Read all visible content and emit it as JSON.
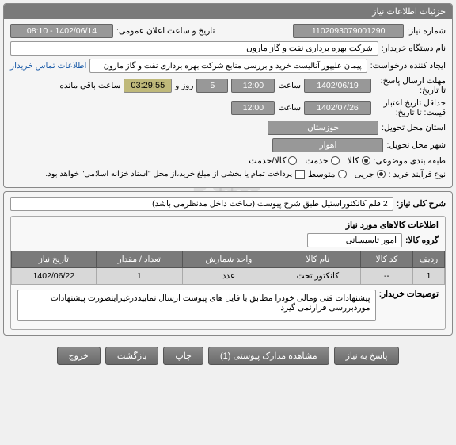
{
  "watermark": "ستاد\nSETADIRAN.IR\n۰۲۱-۸۸۳۴۶۹۶۵",
  "panel1": {
    "title": "جزئیات اطلاعات نیاز",
    "need_number_label": "شماره نیاز:",
    "need_number": "1102093079001290",
    "announce_label": "تاریخ و ساعت اعلان عمومی:",
    "announce_value": "1402/06/14 - 08:10",
    "buyer_label": "نام دستگاه خریدار:",
    "buyer_value": "شرکت بهره برداری نفت و گاز مارون",
    "creator_label": "ایجاد کننده درخواست:",
    "creator_value": "پیمان علیپور آنالیست خرید و بررسی منابع شرکت بهره برداری نفت و گاز مارون",
    "contact_link": "اطلاعات تماس خریدار",
    "deadline_label": "مهلت ارسال پاسخ: تا تاریخ:",
    "deadline_date": "1402/06/19",
    "saat_label": "ساعت",
    "deadline_time": "12:00",
    "day_label": "روز و",
    "day_value": "5",
    "timer_value": "03:29:55",
    "remaining_label": "ساعت باقی مانده",
    "validity_label": "حداقل تاریخ اعتبار قیمت: تا تاریخ:",
    "validity_date": "1402/07/26",
    "validity_time": "12:00",
    "province_label": "استان محل تحویل:",
    "province_value": "خوزستان",
    "city_label": "شهر محل تحویل:",
    "city_value": "اهواز",
    "category_label": "طبقه بندی موضوعی:",
    "cat_kala": "کالا",
    "cat_khedmat": "خدمت",
    "cat_kala_khedmat": "کالا/خدمت",
    "process_label": "نوع فرآیند خرید :",
    "proc_jozi": "جزیی",
    "proc_motevaset": "متوسط",
    "payment_note": "پرداخت تمام یا بخشی از مبلغ خرید،از محل \"اسناد خزانه اسلامی\" خواهد بود."
  },
  "panel2": {
    "desc_label": "شرح کلی نیاز:",
    "desc_value": "2 قلم کانکتوراستیل طبق شرح پیوست (ساخت داخل مدنظرمی باشد)",
    "items_title": "اطلاعات کالاهای مورد نیاز",
    "group_label": "گروه کالا:",
    "group_value": "امور تاسیساتی",
    "columns": [
      "ردیف",
      "کد کالا",
      "نام کالا",
      "واحد شمارش",
      "تعداد / مقدار",
      "تاریخ نیاز"
    ],
    "rows": [
      [
        "1",
        "--",
        "کانکتور تخت",
        "عدد",
        "1",
        "1402/06/22"
      ]
    ],
    "buyer_notes_label": "توضیحات خریدار:",
    "buyer_notes_value": "پیشنهادات فنی ومالی خودرا  مطابق با فایل های پیوست ارسال نماییددرغیراینصورت پیشنهادات موردبررسی قرارنمی گیرد"
  },
  "buttons": {
    "respond": "پاسخ به نیاز",
    "attachments": "مشاهده مدارک پیوستی (1)",
    "print": "چاپ",
    "back": "بازگشت",
    "exit": "خروج"
  }
}
